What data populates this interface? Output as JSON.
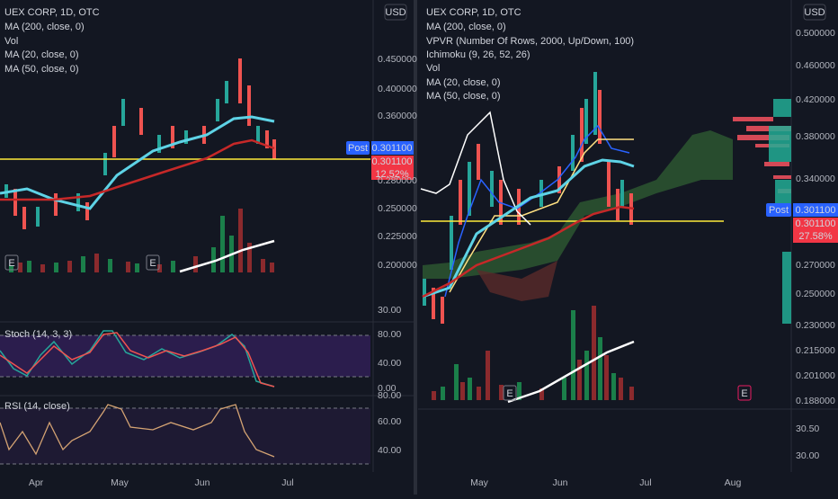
{
  "left": {
    "legend": [
      "UEX CORP, 1D, OTC",
      "MA (200, close, 0)",
      "Vol",
      "MA (20, close, 0)",
      "MA (50, close, 0)"
    ],
    "usd": "USD",
    "price_axis": [
      "0.450000",
      "0.400000",
      "0.360000",
      "0.280000",
      "0.250000",
      "0.225000",
      "0.200000",
      "30.00",
      "80.00",
      "40.00",
      "0.00",
      "80.00",
      "60.00",
      "40.00"
    ],
    "post": "Post",
    "last_price": "0.301100",
    "close_price": "0.301100",
    "change": "12.52%",
    "stoch_label": "Stoch (14, 3, 3)",
    "rsi_label": "RSI (14, close)",
    "time_axis": [
      "Apr",
      "May",
      "Jun",
      "Jul"
    ],
    "earnings": [
      "E",
      "E"
    ]
  },
  "right": {
    "legend": [
      "UEX CORP, 1D, OTC",
      "MA (200, close, 0)",
      "VPVR (Number Of Rows, 2000, Up/Down, 100)",
      "Ichimoku (9, 26, 52, 26)",
      "Vol",
      "MA (20, close, 0)",
      "MA (50, close, 0)"
    ],
    "usd": "USD",
    "price_axis": [
      "0.500000",
      "0.460000",
      "0.420000",
      "0.380000",
      "0.340000",
      "0.270000",
      "0.250000",
      "0.230000",
      "0.215000",
      "0.201000",
      "0.188000",
      "30.50",
      "30.00"
    ],
    "post": "Post",
    "last_price": "0.301100",
    "close_price": "0.301100",
    "change": "27.58%",
    "time_axis": [
      "May",
      "Jun",
      "Jul",
      "Aug"
    ],
    "earnings": [
      "E",
      "E"
    ]
  }
}
